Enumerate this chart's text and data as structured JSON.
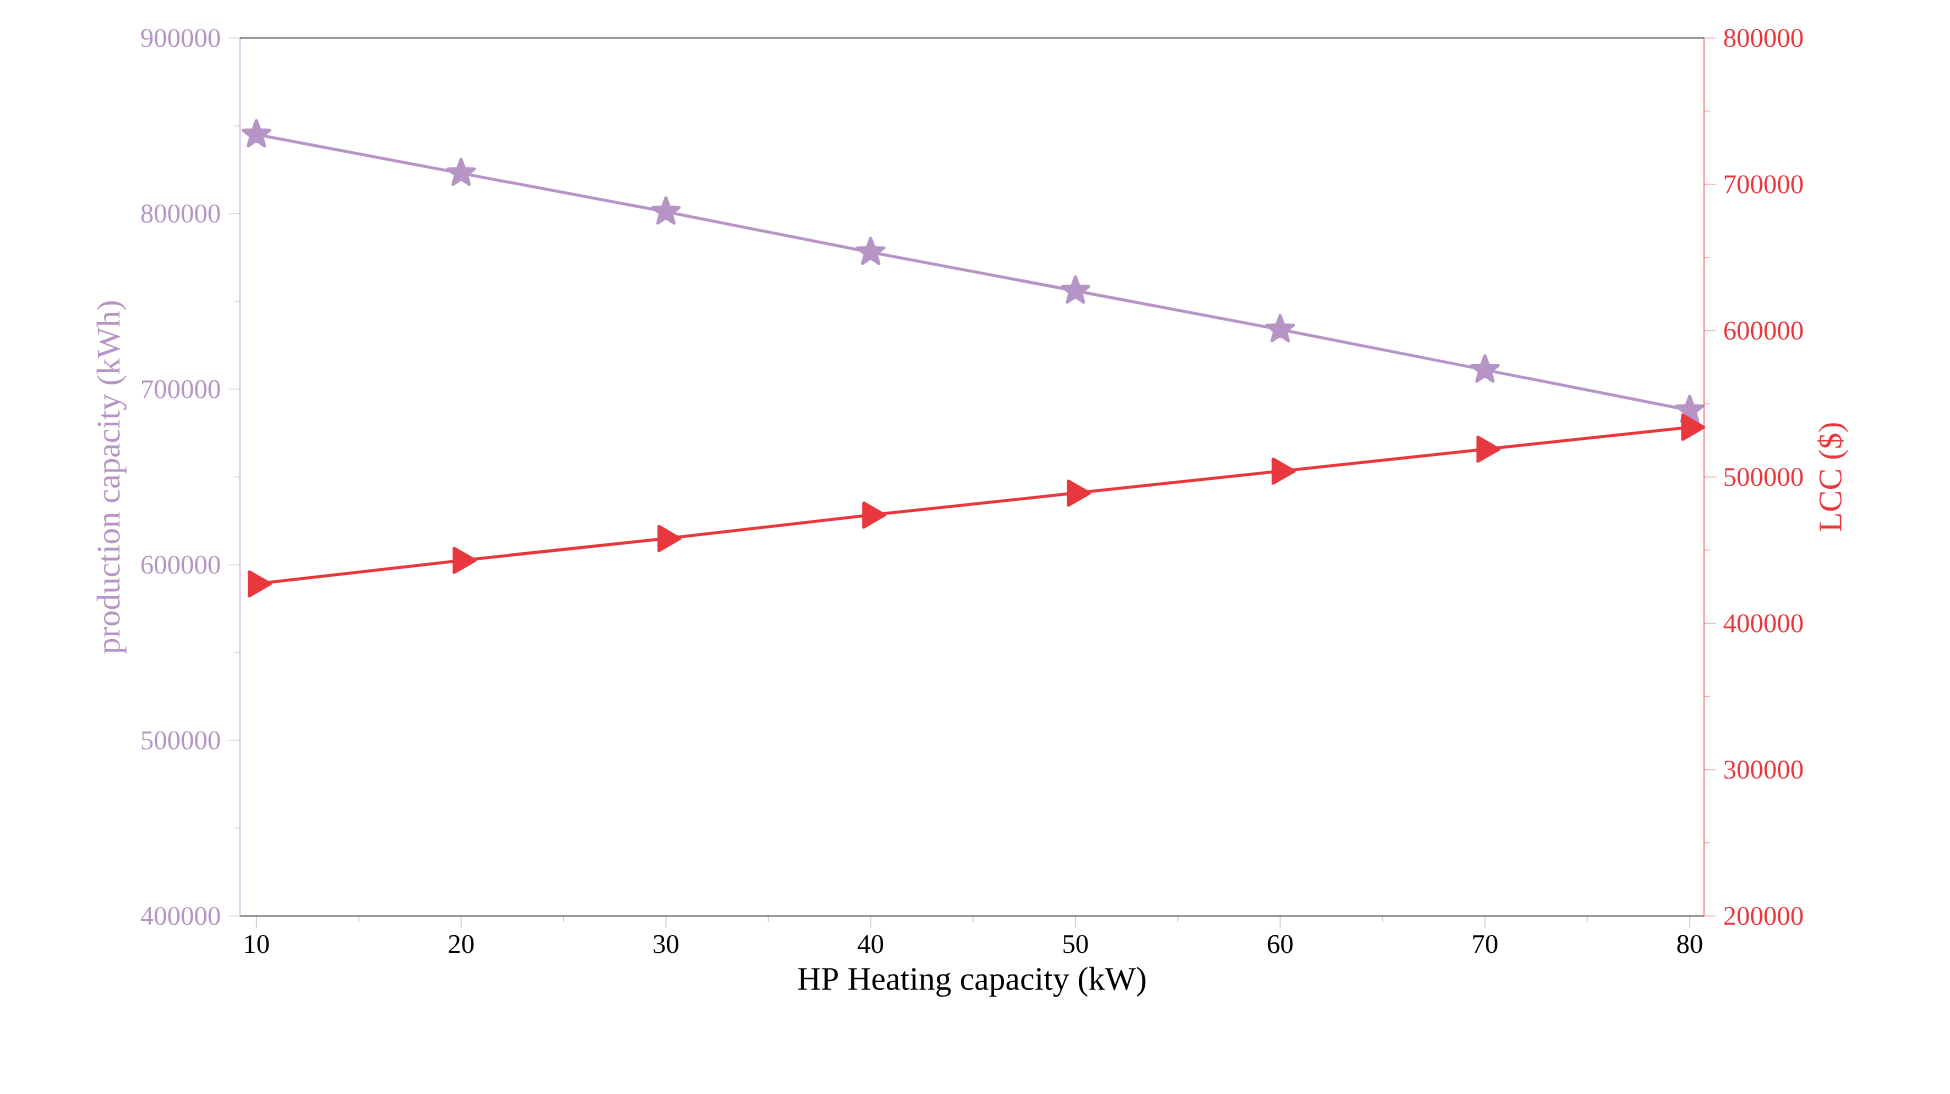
{
  "chart_data": {
    "type": "line",
    "xlabel": "HP Heating capacity (kW)",
    "ylabel": "production capacity (kWh)",
    "y2label": "LCC ($)",
    "x": [
      10,
      20,
      30,
      40,
      50,
      60,
      70,
      80
    ],
    "series": [
      {
        "color": "#b695c6",
        "marker": "star",
        "values": [
          845000,
          823000,
          801000,
          778000,
          756000,
          734000,
          711000,
          688000
        ]
      },
      {
        "color": "#e8383d",
        "marker": "triangle",
        "axis": "y2",
        "values": [
          427000,
          443000,
          458000,
          474000,
          489000,
          504000,
          519000,
          534000
        ]
      }
    ],
    "xlim": [
      9.2,
      80.7
    ],
    "xticks": [
      10,
      20,
      30,
      40,
      50,
      60,
      70,
      80
    ],
    "ylim": [
      400000,
      900000
    ],
    "yticks": [
      400000,
      500000,
      600000,
      700000,
      800000,
      900000
    ],
    "y2lim": [
      200000,
      800000
    ],
    "y2ticks": [
      200000,
      300000,
      400000,
      500000,
      600000,
      700000,
      800000
    ],
    "grid": false,
    "line_style": "solid"
  }
}
